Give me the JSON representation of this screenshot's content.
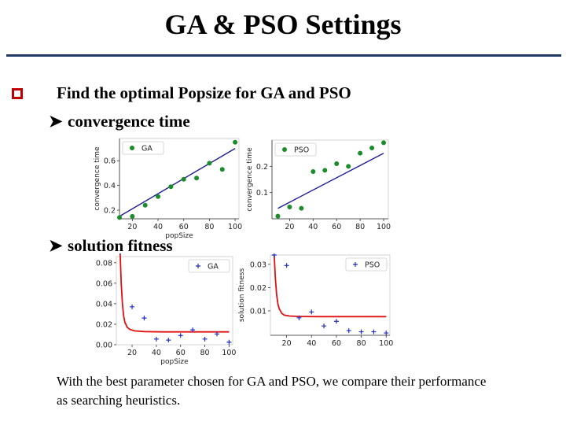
{
  "slide": {
    "title": "GA & PSO Settings",
    "bullet_text": "Find the optimal Popsize for GA and PSO",
    "sub1": "convergence time",
    "sub2": "solution fitness",
    "note": "With the best parameter chosen for GA and PSO, we compare their performance as searching heuristics.",
    "bullet_color": "#c00000",
    "rule_color": "#1f3864"
  },
  "chart_data": [
    {
      "type": "scatter",
      "title": "",
      "legend": "GA",
      "legend_position": "top-left",
      "xlabel": "popSize",
      "ylabel": "convergence time",
      "xlim": [
        10,
        103
      ],
      "ylim": [
        0.13,
        0.78
      ],
      "xticks": [
        20,
        40,
        60,
        80,
        100
      ],
      "yticks": [
        0.2,
        0.4,
        0.6
      ],
      "ytick_labels": [
        "0.2",
        "0.4",
        "0.6"
      ],
      "show_xticklabels": true,
      "marker": "dot",
      "marker_color": "#1a8c2a",
      "x": [
        10,
        20,
        30,
        40,
        50,
        60,
        70,
        80,
        90,
        100
      ],
      "y": [
        0.14,
        0.15,
        0.24,
        0.31,
        0.39,
        0.45,
        0.46,
        0.58,
        0.53,
        0.75
      ],
      "fit": {
        "x": [
          10,
          100
        ],
        "y": [
          0.15,
          0.7
        ],
        "color": "#1c1c9a"
      },
      "show_left_spine": true,
      "show_bottom_spine": true
    },
    {
      "type": "scatter",
      "title": "",
      "legend": "PSO",
      "legend_position": "top-left",
      "xlabel": "",
      "ylabel": "convergence time",
      "xlim": [
        5,
        104
      ],
      "ylim": [
        0.0,
        0.3
      ],
      "xticks": [
        20,
        40,
        60,
        80,
        100
      ],
      "yticks": [
        0.1,
        0.2
      ],
      "ytick_labels": [
        "0.1",
        "0.2"
      ],
      "show_xticklabels": true,
      "marker": "dot",
      "marker_color": "#1a8c2a",
      "x": [
        10,
        20,
        30,
        40,
        50,
        60,
        70,
        80,
        90,
        100
      ],
      "y": [
        0.01,
        0.045,
        0.04,
        0.18,
        0.185,
        0.21,
        0.2,
        0.25,
        0.27,
        0.29
      ],
      "fit": {
        "x": [
          10,
          100
        ],
        "y": [
          0.04,
          0.25
        ],
        "color": "#1c1c9a"
      },
      "show_left_spine": true,
      "show_bottom_spine": true
    },
    {
      "type": "scatter",
      "title": "",
      "legend": "GA",
      "legend_position": "top-right",
      "xlabel": "popSize",
      "ylabel": "",
      "xlim": [
        7,
        103
      ],
      "ylim": [
        0.0,
        0.086
      ],
      "xticks": [
        20,
        40,
        60,
        80,
        100
      ],
      "yticks": [
        0.0,
        0.02,
        0.04,
        0.06,
        0.08
      ],
      "ytick_labels": [
        "0.00",
        "0.02",
        "0.04",
        "0.06",
        "0.08"
      ],
      "show_xticklabels": true,
      "marker": "plus",
      "marker_color": "#1f2fbf",
      "x": [
        10,
        20,
        30,
        40,
        50,
        60,
        70,
        80,
        90,
        100
      ],
      "y": [
        0.09,
        0.037,
        0.026,
        0.0055,
        0.0045,
        0.009,
        0.0145,
        0.0055,
        0.0105,
        0.0025
      ],
      "fit": {
        "x": [
          10,
          11,
          12,
          13,
          14,
          16,
          18,
          22,
          30,
          45,
          60,
          80,
          100
        ],
        "y": [
          0.095,
          0.06,
          0.04,
          0.028,
          0.022,
          0.017,
          0.015,
          0.0135,
          0.0128,
          0.0125,
          0.0125,
          0.0125,
          0.0125
        ],
        "color": "#e01010"
      },
      "show_left_spine": false,
      "show_bottom_spine": false
    },
    {
      "type": "scatter",
      "title": "",
      "legend": "PSO",
      "legend_position": "top-right",
      "xlabel": "",
      "ylabel": "solution fitness",
      "xlim": [
        7,
        103
      ],
      "ylim": [
        -0.0005,
        0.034
      ],
      "xticks": [
        20,
        40,
        60,
        80,
        100
      ],
      "yticks": [
        0.01,
        0.02,
        0.03
      ],
      "ytick_labels": [
        "0.01",
        "0.02",
        "0.03"
      ],
      "show_xticklabels": true,
      "marker": "plus",
      "marker_color": "#1f2fbf",
      "x": [
        10,
        20,
        30,
        40,
        50,
        60,
        70,
        80,
        90,
        100
      ],
      "y": [
        0.034,
        0.0295,
        0.007,
        0.0095,
        0.0035,
        0.0055,
        0.0015,
        0.001,
        0.001,
        0.0005
      ],
      "fit": {
        "x": [
          10,
          11,
          12,
          13,
          14,
          16,
          18,
          22,
          30,
          45,
          60,
          80,
          100
        ],
        "y": [
          0.034,
          0.024,
          0.017,
          0.013,
          0.011,
          0.009,
          0.0082,
          0.0078,
          0.0076,
          0.0075,
          0.0075,
          0.0075,
          0.0075
        ],
        "color": "#e01010"
      },
      "show_left_spine": false,
      "show_bottom_spine": true
    }
  ]
}
